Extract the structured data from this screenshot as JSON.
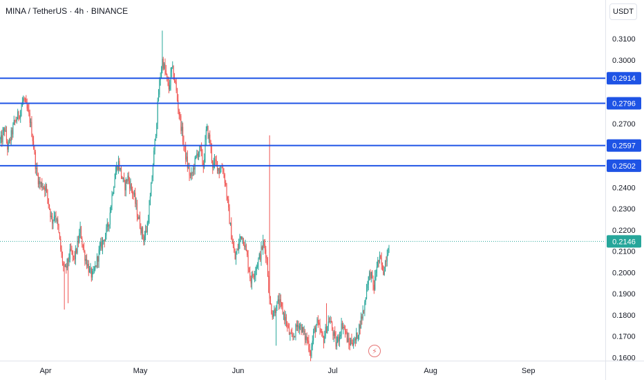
{
  "header": {
    "symbol_title": "MINA / TetherUS · 4h · BINANCE",
    "currency_button": "USDT"
  },
  "icons": {
    "alert": "lightning-bolt-icon"
  },
  "colors": {
    "up": "#26a69a",
    "down": "#ef5350",
    "level_line": "#1e53e5",
    "last_price": "#26a69a",
    "axis_text": "#131722"
  },
  "chart_data": {
    "type": "candlestick",
    "title": "MINA / TetherUS · 4h · BINANCE",
    "xlabel": "",
    "ylabel": "",
    "ylim": [
      0.158,
      0.3158
    ],
    "y_ticks": [
      0.16,
      0.17,
      0.18,
      0.19,
      0.2,
      0.21,
      0.22,
      0.23,
      0.24,
      0.25,
      0.26,
      0.27,
      0.28,
      0.29,
      0.3,
      0.31
    ],
    "y_tick_labels": [
      "0.1600",
      "0.1700",
      "0.1800",
      "0.1900",
      "0.2000",
      "0.2100",
      "0.2200",
      "0.2300",
      "0.2400",
      "0.2500",
      "0.2600",
      "0.2700",
      "0.2800",
      "0.2900",
      "0.3000",
      "0.3100"
    ],
    "x_ticks": [
      {
        "label": "Apr",
        "date": "2024-04-01"
      },
      {
        "label": "May",
        "date": "2024-05-01"
      },
      {
        "label": "Jun",
        "date": "2024-06-01"
      },
      {
        "label": "Jul",
        "date": "2024-07-01"
      },
      {
        "label": "Aug",
        "date": "2024-08-01"
      },
      {
        "label": "Sep",
        "date": "2024-09-01"
      }
    ],
    "horizontal_levels": [
      0.2914,
      0.2796,
      0.2597,
      0.2502
    ],
    "level_labels": [
      "0.2914",
      "0.2796",
      "0.2597",
      "0.2502"
    ],
    "last_price": 0.2146,
    "last_price_label": "0.2146",
    "grid": false,
    "legend": "none",
    "price_path": [
      [
        "2024-03-18",
        0.262
      ],
      [
        "2024-03-19",
        0.268
      ],
      [
        "2024-03-20",
        0.258
      ],
      [
        "2024-03-22",
        0.27
      ],
      [
        "2024-03-24",
        0.276
      ],
      [
        "2024-03-25",
        0.282
      ],
      [
        "2024-03-27",
        0.272
      ],
      [
        "2024-03-28",
        0.262
      ],
      [
        "2024-03-29",
        0.248
      ],
      [
        "2024-03-30",
        0.242
      ],
      [
        "2024-04-01",
        0.24
      ],
      [
        "2024-04-02",
        0.232
      ],
      [
        "2024-04-03",
        0.224
      ],
      [
        "2024-04-04",
        0.228
      ],
      [
        "2024-04-05",
        0.22
      ],
      [
        "2024-04-06",
        0.208
      ],
      [
        "2024-04-07",
        0.2
      ],
      [
        "2024-04-08",
        0.205
      ],
      [
        "2024-04-09",
        0.21
      ],
      [
        "2024-04-10",
        0.206
      ],
      [
        "2024-04-11",
        0.212
      ],
      [
        "2024-04-12",
        0.22
      ],
      [
        "2024-04-13",
        0.21
      ],
      [
        "2024-04-14",
        0.205
      ],
      [
        "2024-04-15",
        0.2
      ],
      [
        "2024-04-16",
        0.198
      ],
      [
        "2024-04-17",
        0.204
      ],
      [
        "2024-04-18",
        0.21
      ],
      [
        "2024-04-19",
        0.214
      ],
      [
        "2024-04-20",
        0.218
      ],
      [
        "2024-04-21",
        0.223
      ],
      [
        "2024-04-22",
        0.236
      ],
      [
        "2024-04-23",
        0.246
      ],
      [
        "2024-04-24",
        0.252
      ],
      [
        "2024-04-25",
        0.246
      ],
      [
        "2024-04-26",
        0.24
      ],
      [
        "2024-04-27",
        0.245
      ],
      [
        "2024-04-28",
        0.24
      ],
      [
        "2024-04-29",
        0.236
      ],
      [
        "2024-04-30",
        0.228
      ],
      [
        "2024-05-01",
        0.222
      ],
      [
        "2024-05-02",
        0.216
      ],
      [
        "2024-05-03",
        0.22
      ],
      [
        "2024-05-04",
        0.232
      ],
      [
        "2024-05-05",
        0.25
      ],
      [
        "2024-05-06",
        0.268
      ],
      [
        "2024-05-07",
        0.288
      ],
      [
        "2024-05-08",
        0.3
      ],
      [
        "2024-05-09",
        0.294
      ],
      [
        "2024-05-10",
        0.286
      ],
      [
        "2024-05-11",
        0.296
      ],
      [
        "2024-05-12",
        0.29
      ],
      [
        "2024-05-13",
        0.278
      ],
      [
        "2024-05-14",
        0.268
      ],
      [
        "2024-05-15",
        0.258
      ],
      [
        "2024-05-16",
        0.25
      ],
      [
        "2024-05-17",
        0.244
      ],
      [
        "2024-05-18",
        0.25
      ],
      [
        "2024-05-19",
        0.256
      ],
      [
        "2024-05-20",
        0.258
      ],
      [
        "2024-05-21",
        0.25
      ],
      [
        "2024-05-22",
        0.268
      ],
      [
        "2024-05-23",
        0.262
      ],
      [
        "2024-05-24",
        0.25
      ],
      [
        "2024-05-25",
        0.252
      ],
      [
        "2024-05-26",
        0.248
      ],
      [
        "2024-05-27",
        0.25
      ],
      [
        "2024-05-28",
        0.242
      ],
      [
        "2024-05-29",
        0.228
      ],
      [
        "2024-05-30",
        0.216
      ],
      [
        "2024-05-31",
        0.206
      ],
      [
        "2024-06-01",
        0.212
      ],
      [
        "2024-06-02",
        0.218
      ],
      [
        "2024-06-03",
        0.214
      ],
      [
        "2024-06-04",
        0.206
      ],
      [
        "2024-06-05",
        0.196
      ],
      [
        "2024-06-06",
        0.2
      ],
      [
        "2024-06-07",
        0.204
      ],
      [
        "2024-06-08",
        0.208
      ],
      [
        "2024-06-09",
        0.214
      ],
      [
        "2024-06-10",
        0.208
      ],
      [
        "2024-06-11",
        0.186
      ],
      [
        "2024-06-12",
        0.18
      ],
      [
        "2024-06-13",
        0.184
      ],
      [
        "2024-06-14",
        0.186
      ],
      [
        "2024-06-15",
        0.182
      ],
      [
        "2024-06-16",
        0.178
      ],
      [
        "2024-06-17",
        0.172
      ],
      [
        "2024-06-18",
        0.168
      ],
      [
        "2024-06-19",
        0.172
      ],
      [
        "2024-06-20",
        0.176
      ],
      [
        "2024-06-21",
        0.174
      ],
      [
        "2024-06-22",
        0.17
      ],
      [
        "2024-06-23",
        0.168
      ],
      [
        "2024-06-24",
        0.162
      ],
      [
        "2024-06-25",
        0.172
      ],
      [
        "2024-06-26",
        0.176
      ],
      [
        "2024-06-27",
        0.172
      ],
      [
        "2024-06-28",
        0.168
      ],
      [
        "2024-06-29",
        0.174
      ],
      [
        "2024-06-30",
        0.178
      ],
      [
        "2024-07-01",
        0.172
      ],
      [
        "2024-07-02",
        0.166
      ],
      [
        "2024-07-03",
        0.17
      ],
      [
        "2024-07-04",
        0.176
      ],
      [
        "2024-07-05",
        0.172
      ],
      [
        "2024-07-06",
        0.166
      ],
      [
        "2024-07-07",
        0.168
      ],
      [
        "2024-07-08",
        0.167
      ],
      [
        "2024-07-09",
        0.172
      ],
      [
        "2024-07-10",
        0.178
      ],
      [
        "2024-07-11",
        0.184
      ],
      [
        "2024-07-12",
        0.196
      ],
      [
        "2024-07-13",
        0.2
      ],
      [
        "2024-07-14",
        0.192
      ],
      [
        "2024-07-15",
        0.204
      ],
      [
        "2024-07-16",
        0.206
      ],
      [
        "2024-07-17",
        0.2
      ],
      [
        "2024-07-18",
        0.208
      ],
      [
        "2024-07-19",
        0.2146
      ]
    ],
    "extremes": [
      [
        "2024-04-07",
        "low",
        0.1825
      ],
      [
        "2024-04-08",
        "low",
        0.1855
      ],
      [
        "2024-05-08",
        "high",
        0.3138
      ],
      [
        "2024-06-11",
        "high",
        0.2645
      ],
      [
        "2024-06-13",
        "low",
        0.1655
      ],
      [
        "2024-06-24",
        "low",
        0.1595
      ],
      [
        "2024-06-29",
        "high",
        0.1855
      ]
    ]
  }
}
